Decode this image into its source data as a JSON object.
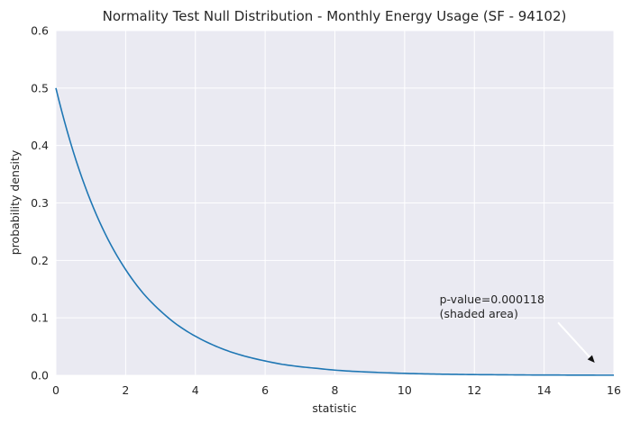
{
  "chart_data": {
    "type": "line",
    "title": "Normality Test Null Distribution - Monthly Energy Usage (SF - 94102)",
    "xlabel": "statistic",
    "ylabel": "probability density",
    "xlim": [
      0,
      16
    ],
    "ylim": [
      0,
      0.6
    ],
    "x_ticks": [
      "0",
      "2",
      "4",
      "6",
      "8",
      "10",
      "12",
      "14",
      "16"
    ],
    "y_ticks": [
      "0.0",
      "0.1",
      "0.2",
      "0.3",
      "0.4",
      "0.5",
      "0.6"
    ],
    "grid": true,
    "series": [
      {
        "color": "#1f77b4",
        "x": [
          0,
          0.5,
          1,
          1.5,
          2,
          2.5,
          3,
          3.5,
          4,
          4.5,
          5,
          5.5,
          6,
          6.5,
          7,
          7.5,
          8,
          8.5,
          9,
          9.5,
          10,
          10.5,
          11,
          11.5,
          12,
          12.5,
          13,
          13.5,
          14,
          14.5,
          15,
          15.5,
          16
        ],
        "y": [
          0.5,
          0.389,
          0.303,
          0.236,
          0.184,
          0.143,
          0.112,
          0.087,
          0.068,
          0.053,
          0.041,
          0.032,
          0.025,
          0.019,
          0.015,
          0.012,
          0.009,
          0.007,
          0.0056,
          0.0043,
          0.0034,
          0.0026,
          0.002,
          0.0016,
          0.0012,
          0.001,
          0.0008,
          0.0006,
          0.0005,
          0.0004,
          0.0003,
          0.0002,
          0.0002
        ]
      }
    ],
    "annotation": {
      "text_lines": [
        "p-value=0.000118",
        "(shaded area)"
      ],
      "text_at": [
        11.0,
        0.1
      ],
      "arrow_from": [
        14.4,
        0.092
      ],
      "arrow_to": [
        15.45,
        0.022
      ]
    },
    "colors": {
      "plot_background": "#eaeaf2",
      "grid": "#ffffff",
      "line": "#1f77b4"
    }
  }
}
